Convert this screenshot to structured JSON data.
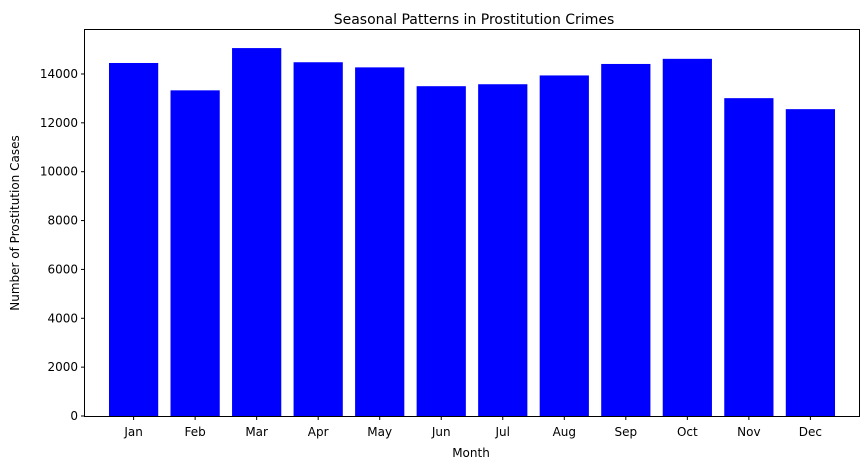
{
  "chart_data": {
    "type": "bar",
    "title": "Seasonal Patterns in Prostitution Crimes",
    "xlabel": "Month",
    "ylabel": "Number of Prostitution Cases",
    "categories": [
      "Jan",
      "Feb",
      "Mar",
      "Apr",
      "May",
      "Jun",
      "Jul",
      "Aug",
      "Sep",
      "Oct",
      "Nov",
      "Dec"
    ],
    "values": [
      14450,
      13330,
      15060,
      14480,
      14270,
      13500,
      13580,
      13940,
      14410,
      14620,
      13010,
      12560
    ],
    "ylim": [
      0,
      15800
    ],
    "yticks": [
      0,
      2000,
      4000,
      6000,
      8000,
      10000,
      12000,
      14000
    ],
    "bar_color": "#0000ff",
    "grid": false,
    "legend": false
  }
}
